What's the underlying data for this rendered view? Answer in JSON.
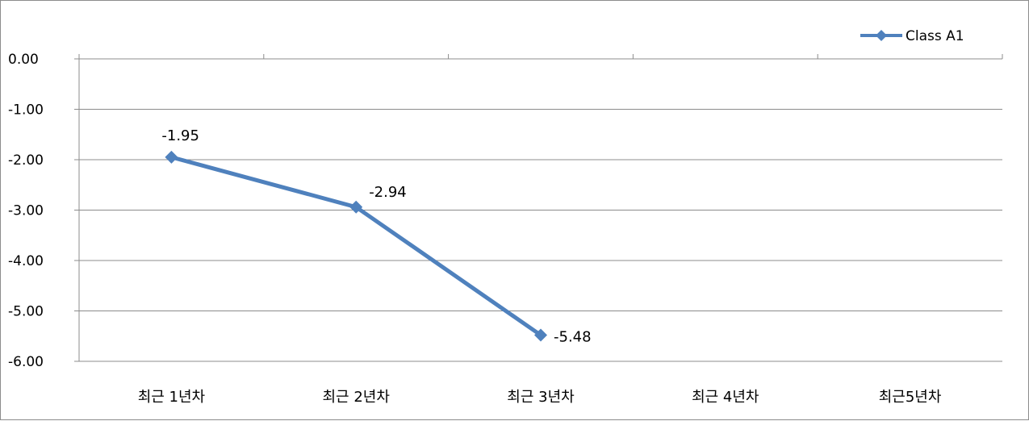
{
  "chart_data": {
    "type": "line",
    "categories": [
      "최근 1년차",
      "최근 2년차",
      "최근 3년차",
      "최근 4년차",
      "최근5년차"
    ],
    "series": [
      {
        "name": "Class A1",
        "values": [
          -1.95,
          -2.94,
          -5.48,
          null,
          null
        ],
        "color": "#4f81bd"
      }
    ],
    "data_labels": [
      "-1.95",
      "-2.94",
      "-5.48"
    ],
    "ylim": [
      -6,
      0
    ],
    "yticks": [
      "0.00",
      "-1.00",
      "-2.00",
      "-3.00",
      "-4.00",
      "-5.00",
      "-6.00"
    ],
    "ytick_values": [
      0,
      -1,
      -2,
      -3,
      -4,
      -5,
      -6
    ],
    "grid": true,
    "legend_position": "top-right",
    "title": "",
    "xlabel": "",
    "ylabel": ""
  }
}
